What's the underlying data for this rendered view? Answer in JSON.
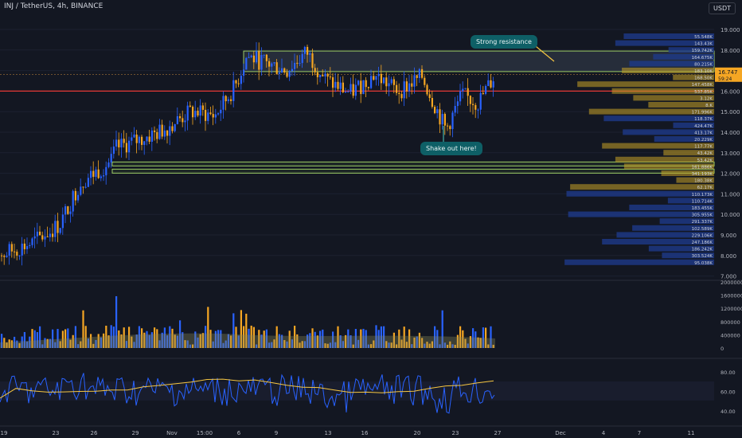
{
  "header": {
    "title": "INJ / TetherUS, 4h, BINANCE",
    "currency": "USDT"
  },
  "annotations": {
    "resistance": "Strong resistance",
    "shakeout": "Shake out here!"
  },
  "colors": {
    "up": "#2962ff",
    "down": "#f5a623",
    "line": "#e53935",
    "accent": "#26a69a"
  },
  "chart_data": {
    "type": "candlestick",
    "price_axis": {
      "ticks": [
        "19.000",
        "18.000",
        "17.000",
        "16.000",
        "15.000",
        "14.000",
        "13.000",
        "12.000",
        "11.000",
        "10.000",
        "9.000",
        "8.000",
        "7.000"
      ]
    },
    "current_price": "16.747",
    "current_label_2": "59:24",
    "red_line_price": 16.0,
    "resistance_zone": [
      16.95,
      17.95
    ],
    "support_zone": [
      11.85,
      12.55
    ],
    "volume_profile_labels": [
      "55.548K",
      "143.43K",
      "159.742K",
      "164.675K",
      "80.215K",
      "183.10K",
      "168.50K",
      "147.458K",
      "537.85K",
      "3.12K",
      "8.K",
      "171.996K",
      "118.37K",
      "424.47K",
      "413.17K",
      "20.229K",
      "117.77K",
      "43.42K",
      "53.42K",
      "161.886K",
      "341.193K",
      "180.38K",
      "62.17K",
      "110.173K",
      "110.714K",
      "183.455K",
      "305.955K",
      "291.337K",
      "102.589K",
      "229.106K",
      "247.186K",
      "186.242K",
      "303.524K",
      "95.038K"
    ],
    "x_labels": [
      "19",
      "23",
      "26",
      "29",
      "Nov",
      "15:00",
      "6",
      "9",
      "13",
      "16",
      "20",
      "23",
      "27",
      "Dec",
      "4",
      "7",
      "11"
    ],
    "volume_axis": [
      "2000000",
      "1600000",
      "1200000",
      "800000",
      "400000",
      "0"
    ],
    "rsi_axis": [
      "80.00",
      "60.00",
      "40.00"
    ]
  }
}
